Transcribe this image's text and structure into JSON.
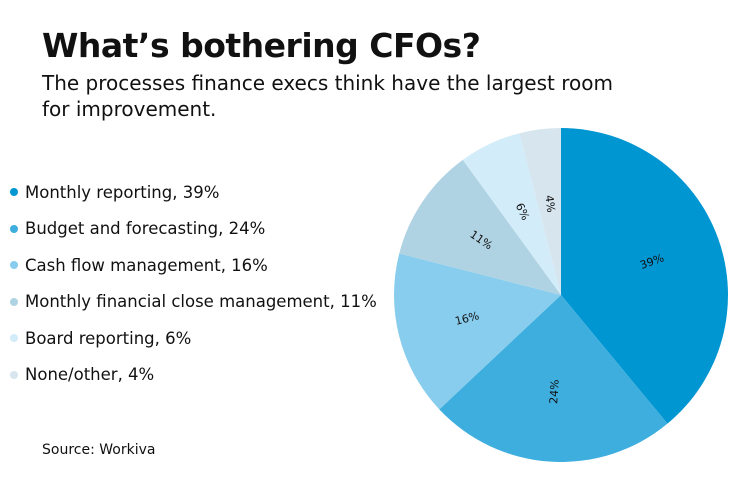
{
  "title": "What’s bothering CFOs?",
  "subtitle": "The processes finance execs think have the largest room for improvement.",
  "source": "Source: Workiva",
  "chart_data": {
    "type": "pie",
    "title": "What’s bothering CFOs?",
    "legend_position": "left",
    "start": "top, clockwise",
    "slices": [
      {
        "label": "Monthly reporting",
        "legend": "Monthly reporting, 39%",
        "value": 39,
        "data_label": "39%",
        "color": "#0096d2"
      },
      {
        "label": "Budget and forecasting",
        "legend": "Budget and forecasting, 24%",
        "value": 24,
        "data_label": "24%",
        "color": "#3eaedf"
      },
      {
        "label": "Cash flow management",
        "legend": "Cash flow management, 16%",
        "value": 16,
        "data_label": "16%",
        "color": "#88cded"
      },
      {
        "label": "Monthly financial close management",
        "legend": "Monthly financial close management, 11%",
        "value": 11,
        "data_label": "11%",
        "color": "#b0d3e3"
      },
      {
        "label": "Board reporting",
        "legend": "Board reporting, 6%",
        "value": 6,
        "data_label": "6%",
        "color": "#d2ecfa"
      },
      {
        "label": "None/other",
        "legend": "None/other, 4%",
        "value": 4,
        "data_label": "4%",
        "color": "#d6e5ee"
      }
    ]
  }
}
